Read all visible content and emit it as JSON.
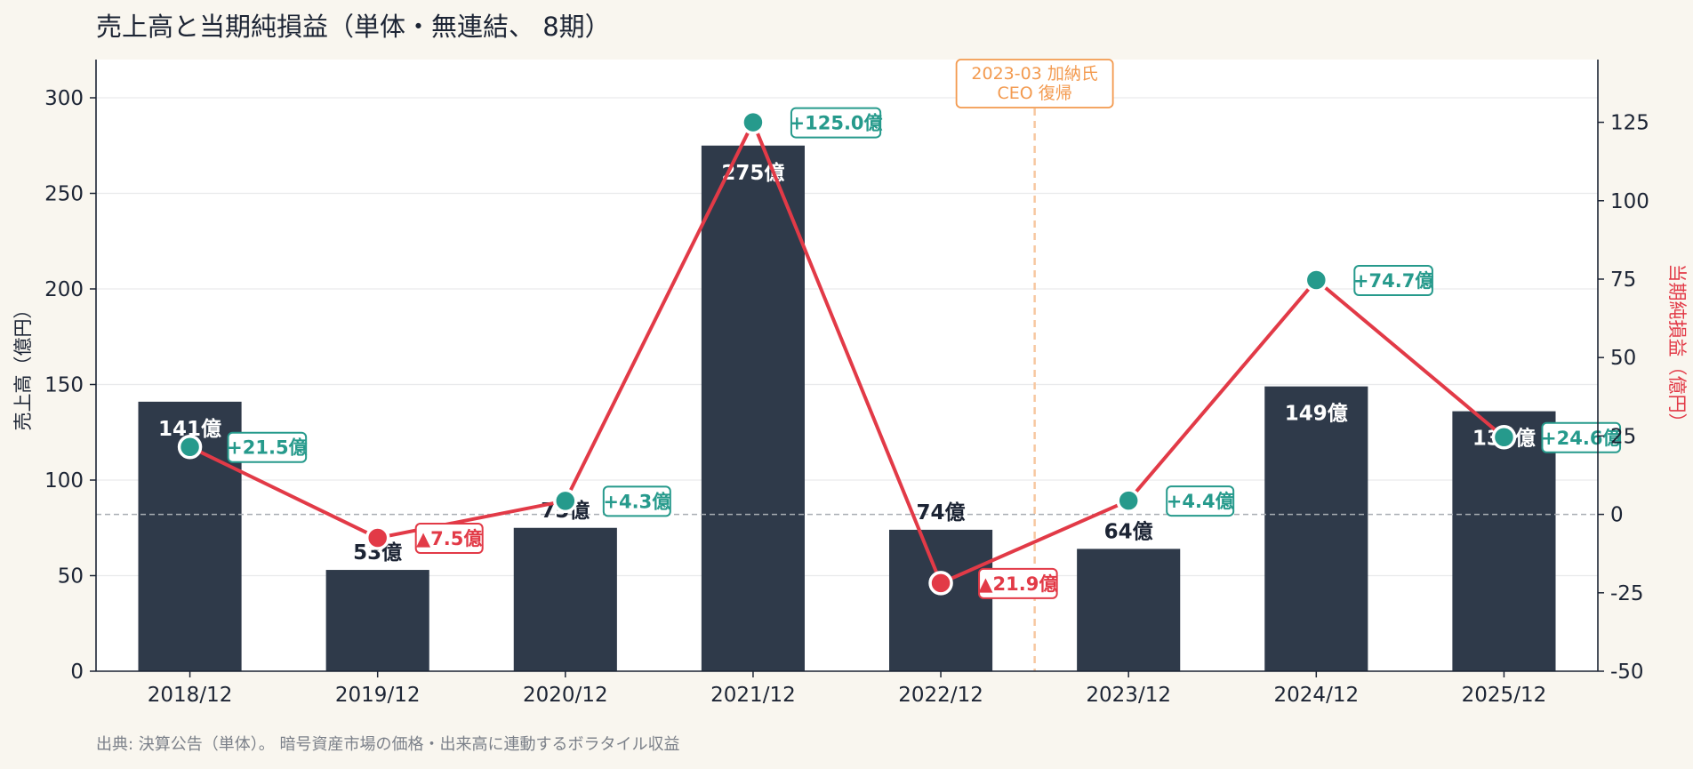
{
  "chart_data": {
    "type": "bar",
    "title": "売上高と当期純損益（単体・無連結、 8期）",
    "footnote": "出典: 決算公告（単体）。 暗号資産市場の価格・出来高に連動するボラタイル収益",
    "categories": [
      "2018/12",
      "2019/12",
      "2020/12",
      "2021/12",
      "2022/12",
      "2023/12",
      "2024/12",
      "2025/12"
    ],
    "bar_series": {
      "name": "売上高",
      "values": [
        141,
        53,
        75,
        275,
        74,
        64,
        149,
        136
      ],
      "labels": [
        "141億",
        "53億",
        "75億",
        "275億",
        "74億",
        "64億",
        "149億",
        "136億"
      ],
      "color": "#2f3a4a"
    },
    "line_series": {
      "name": "当期純損益",
      "values": [
        21.5,
        -7.5,
        4.3,
        125.0,
        -21.9,
        4.4,
        74.7,
        24.6
      ],
      "labels": [
        "+21.5億",
        "▲7.5億",
        "+4.3億",
        "+125.0億",
        "▲21.9億",
        "+4.4億",
        "+74.7億",
        "+24.6億"
      ],
      "color": "#e23a47",
      "positive_color": "#269a8c",
      "negative_color": "#e23a47"
    },
    "ylabel_left": "売上高（億円）",
    "ylabel_right": "当期純損益（億円）",
    "ylim_left": [
      0,
      320
    ],
    "ylim_right": [
      -50,
      145
    ],
    "yticks_left": [
      "0",
      "50",
      "100",
      "150",
      "200",
      "250",
      "300"
    ],
    "yticks_right": [
      "-50",
      "-25",
      "0",
      "25",
      "50",
      "75",
      "100",
      "125"
    ],
    "zero_line": true,
    "grid": true,
    "annotation": {
      "text_line1": "2023-03 加納氏",
      "text_line2": "CEO 復帰",
      "after_category": "2022/12",
      "color": "#f39a4f"
    }
  }
}
